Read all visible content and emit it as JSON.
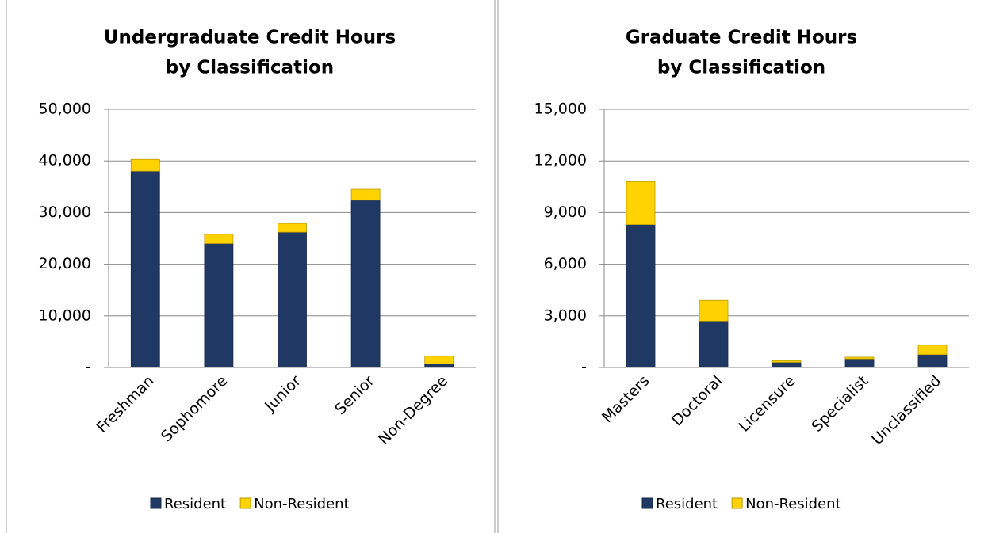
{
  "chart_data": [
    {
      "type": "bar",
      "stacked": true,
      "title": [
        "Undergraduate Credit Hours",
        "by Classification"
      ],
      "categories": [
        "Freshman",
        "Sophomore",
        "Junior",
        "Senior",
        "Non-Degree"
      ],
      "series": [
        {
          "name": "Resident",
          "color": "#1f3864",
          "values": [
            38000,
            24000,
            26200,
            32400,
            700
          ]
        },
        {
          "name": "Non-Resident",
          "color": "#ffd200",
          "values": [
            2300,
            1800,
            1700,
            2100,
            1500
          ]
        }
      ],
      "ylim": [
        0,
        50000
      ],
      "yticks": [
        {
          "value": 0,
          "label": "-"
        },
        {
          "value": 10000,
          "label": "10,000"
        },
        {
          "value": 20000,
          "label": "20,000"
        },
        {
          "value": 30000,
          "label": "30,000"
        },
        {
          "value": 40000,
          "label": "40,000"
        },
        {
          "value": 50000,
          "label": "50,000"
        }
      ],
      "grid": true,
      "legend": "bottom"
    },
    {
      "type": "bar",
      "stacked": true,
      "title": [
        "Graduate Credit Hours",
        "by Classification"
      ],
      "categories": [
        "Masters",
        "Doctoral",
        "Licensure",
        "Specialist",
        "Unclassified"
      ],
      "series": [
        {
          "name": "Resident",
          "color": "#1f3864",
          "values": [
            8300,
            2700,
            300,
            500,
            750
          ]
        },
        {
          "name": "Non-Resident",
          "color": "#ffd200",
          "values": [
            2500,
            1200,
            100,
            100,
            550
          ]
        }
      ],
      "ylim": [
        0,
        15000
      ],
      "yticks": [
        {
          "value": 0,
          "label": "-"
        },
        {
          "value": 3000,
          "label": "3,000"
        },
        {
          "value": 6000,
          "label": "6,000"
        },
        {
          "value": 9000,
          "label": "9,000"
        },
        {
          "value": 12000,
          "label": "12,000"
        },
        {
          "value": 15000,
          "label": "15,000"
        }
      ],
      "grid": true,
      "legend": "bottom"
    }
  ]
}
